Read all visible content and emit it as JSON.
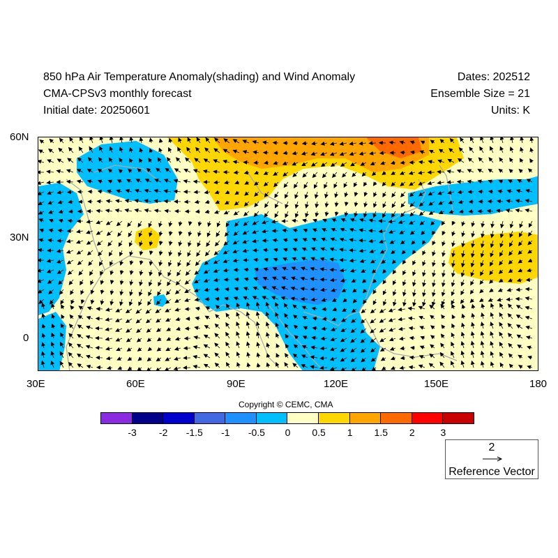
{
  "header": {
    "title": "850 hPa Air Temperature Anomaly(shading) and Wind Anomaly",
    "subtitle": "CMA-CPSv3 monthly forecast",
    "initial_date": "Initial date: 20250601",
    "dates": "Dates: 202512",
    "ensemble": "Ensemble Size = 21",
    "units": "Units: K"
  },
  "map": {
    "lat_labels": [
      "60N",
      "30N",
      "0"
    ],
    "lon_labels": [
      "30E",
      "60E",
      "90E",
      "120E",
      "150E",
      "180"
    ],
    "extent": {
      "lon": [
        30,
        180
      ],
      "lat": [
        -10,
        60
      ]
    },
    "land_fill_color": "#ffffc4"
  },
  "copyright": "Copyright © CEMC, CMA",
  "colorbar": {
    "colors": [
      "#8a2be2",
      "#00008b",
      "#0000cd",
      "#4169e1",
      "#1e90ff",
      "#00bfff",
      "#ffffc4",
      "#ffd700",
      "#ffa500",
      "#ff6a00",
      "#ff0000",
      "#c80000"
    ],
    "labels": [
      "-3",
      "-2",
      "-1.5",
      "-1",
      "-0.5",
      "0",
      "0.5",
      "1",
      "1.5",
      "2",
      "3"
    ]
  },
  "reference_vector": {
    "magnitude": "2",
    "label": "Reference Vector"
  }
}
